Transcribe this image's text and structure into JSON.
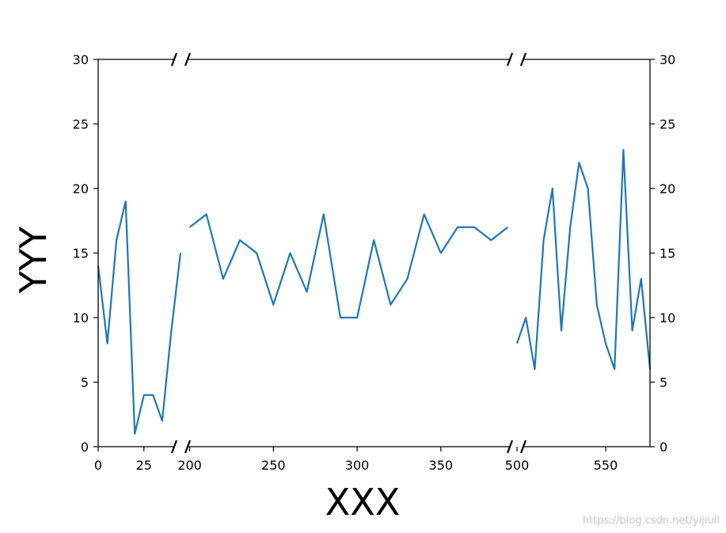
{
  "chart_data": {
    "type": "line",
    "xlabel": "XXX",
    "ylabel": "YYY",
    "ylim": [
      0,
      30
    ],
    "y_ticks": [
      "0",
      "5",
      "10",
      "15",
      "20",
      "25",
      "30"
    ],
    "broken_axis": true,
    "line_color": "#1f77b4",
    "panels": [
      {
        "xlim": [
          0,
          45
        ],
        "x_ticks": [
          {
            "value": 0,
            "label": "0"
          },
          {
            "value": 25,
            "label": "25"
          }
        ],
        "x": [
          0,
          5,
          10,
          15,
          20,
          25,
          30,
          35,
          40,
          45
        ],
        "y": [
          14,
          8,
          16,
          19,
          1,
          4,
          4,
          2,
          9,
          15
        ]
      },
      {
        "xlim": [
          195,
          395
        ],
        "x_ticks": [
          {
            "value": 200,
            "label": "200"
          },
          {
            "value": 250,
            "label": "250"
          },
          {
            "value": 300,
            "label": "300"
          },
          {
            "value": 350,
            "label": "350"
          }
        ],
        "x": [
          200,
          210,
          220,
          230,
          240,
          250,
          260,
          270,
          280,
          290,
          300,
          310,
          320,
          330,
          340,
          350,
          360,
          370,
          380,
          390
        ],
        "y": [
          17,
          18,
          13,
          16,
          15,
          11,
          15,
          12,
          18,
          10,
          10,
          16,
          11,
          13,
          18,
          15,
          17,
          17,
          16,
          17
        ]
      },
      {
        "xlim": [
          500,
          575
        ],
        "x_ticks": [
          {
            "value": 500,
            "label": "500"
          },
          {
            "value": 550,
            "label": "550"
          }
        ],
        "x": [
          500,
          505,
          510,
          515,
          520,
          525,
          530,
          535,
          540,
          545,
          550,
          555,
          560,
          565,
          570,
          575
        ],
        "y": [
          8,
          10,
          6,
          16,
          20,
          9,
          17,
          22,
          20,
          11,
          8,
          6,
          23,
          9,
          13,
          6
        ]
      }
    ]
  },
  "watermark": "https://blog.csdn.net/yijiull"
}
